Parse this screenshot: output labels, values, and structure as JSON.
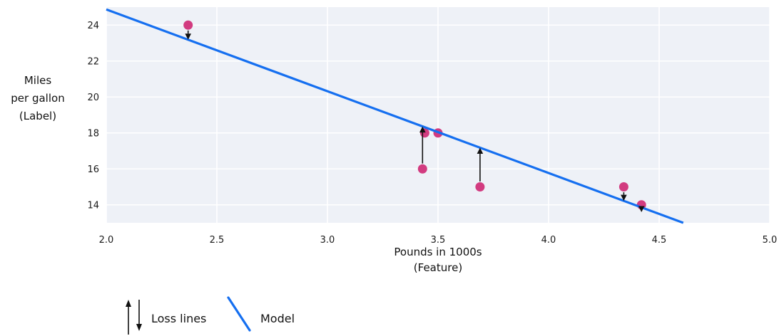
{
  "chart_data": {
    "type": "scatter",
    "title": "",
    "xlabel_lines": [
      "Pounds in 1000s",
      "(Feature)"
    ],
    "ylabel_lines": [
      "Miles",
      "per gallon",
      "(Label)"
    ],
    "xlim": [
      2.0,
      5.0
    ],
    "ylim": [
      13,
      25
    ],
    "grid": true,
    "x_ticks": [
      {
        "value": 2.0,
        "label": "2.0"
      },
      {
        "value": 2.5,
        "label": "2.5"
      },
      {
        "value": 3.0,
        "label": "3.0"
      },
      {
        "value": 3.5,
        "label": "3.5"
      },
      {
        "value": 4.0,
        "label": "4.0"
      },
      {
        "value": 4.5,
        "label": "4.5"
      },
      {
        "value": 5.0,
        "label": "5.0"
      }
    ],
    "y_ticks": [
      {
        "value": 14,
        "label": "14"
      },
      {
        "value": 16,
        "label": "16"
      },
      {
        "value": 18,
        "label": "18"
      },
      {
        "value": 20,
        "label": "20"
      },
      {
        "value": 22,
        "label": "22"
      },
      {
        "value": 24,
        "label": "24"
      }
    ],
    "points": [
      {
        "x": 2.37,
        "y": 24
      },
      {
        "x": 3.44,
        "y": 18
      },
      {
        "x": 3.5,
        "y": 18
      },
      {
        "x": 3.43,
        "y": 16
      },
      {
        "x": 3.69,
        "y": 15
      },
      {
        "x": 4.34,
        "y": 15
      },
      {
        "x": 4.42,
        "y": 14
      }
    ],
    "model_line": {
      "slope": -4.55,
      "intercept": 33.97,
      "x_start": 2.0,
      "x_end": 4.609
    },
    "loss_lines": [
      {
        "x": 2.37,
        "from": 24,
        "direction": "down"
      },
      {
        "x": 3.43,
        "from": 16,
        "direction": "up"
      },
      {
        "x": 3.69,
        "from": 15,
        "direction": "up"
      },
      {
        "x": 4.34,
        "from": 15,
        "direction": "down"
      },
      {
        "x": 4.42,
        "from": 14,
        "direction": "down"
      }
    ],
    "legend": [
      {
        "symbol": "loss-arrows",
        "label": "Loss lines"
      },
      {
        "symbol": "model-line",
        "label": "Model"
      }
    ],
    "colors": {
      "point": "#d23b80",
      "model": "#156ff0",
      "plot_bg": "#eef1f7",
      "grid": "#ffffff",
      "arrow": "#111111",
      "text": "#1a1a1a"
    }
  }
}
